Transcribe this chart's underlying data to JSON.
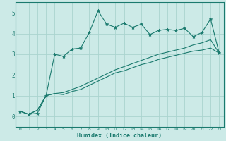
{
  "xlabel": "Humidex (Indice chaleur)",
  "bg_color": "#cceae7",
  "line_color": "#1a7a6e",
  "grid_color": "#aad4cf",
  "x_values": [
    0,
    1,
    2,
    3,
    4,
    5,
    6,
    7,
    8,
    9,
    10,
    11,
    12,
    13,
    14,
    15,
    16,
    17,
    18,
    19,
    20,
    21,
    22,
    23
  ],
  "line1_y": [
    0.25,
    0.1,
    0.15,
    1.0,
    3.0,
    2.9,
    3.25,
    3.3,
    4.05,
    5.1,
    4.45,
    4.3,
    4.5,
    4.3,
    4.45,
    3.95,
    4.15,
    4.2,
    4.15,
    4.25,
    3.85,
    4.05,
    4.7,
    3.05
  ],
  "line2_y": [
    0.25,
    0.1,
    0.3,
    1.0,
    1.1,
    1.05,
    1.2,
    1.3,
    1.5,
    1.7,
    1.9,
    2.1,
    2.2,
    2.35,
    2.5,
    2.6,
    2.75,
    2.85,
    2.95,
    3.05,
    3.15,
    3.2,
    3.3,
    3.05
  ],
  "line3_y": [
    0.25,
    0.1,
    0.3,
    1.0,
    1.1,
    1.15,
    1.3,
    1.45,
    1.65,
    1.85,
    2.05,
    2.25,
    2.4,
    2.55,
    2.7,
    2.85,
    3.0,
    3.1,
    3.2,
    3.3,
    3.45,
    3.55,
    3.7,
    3.05
  ],
  "ylim": [
    -0.5,
    5.5
  ],
  "xlim": [
    -0.5,
    23.5
  ],
  "yticks": [
    0,
    1,
    2,
    3,
    4,
    5
  ],
  "xticks": [
    0,
    1,
    2,
    3,
    4,
    5,
    6,
    7,
    8,
    9,
    10,
    11,
    12,
    13,
    14,
    15,
    16,
    17,
    18,
    19,
    20,
    21,
    22,
    23
  ]
}
